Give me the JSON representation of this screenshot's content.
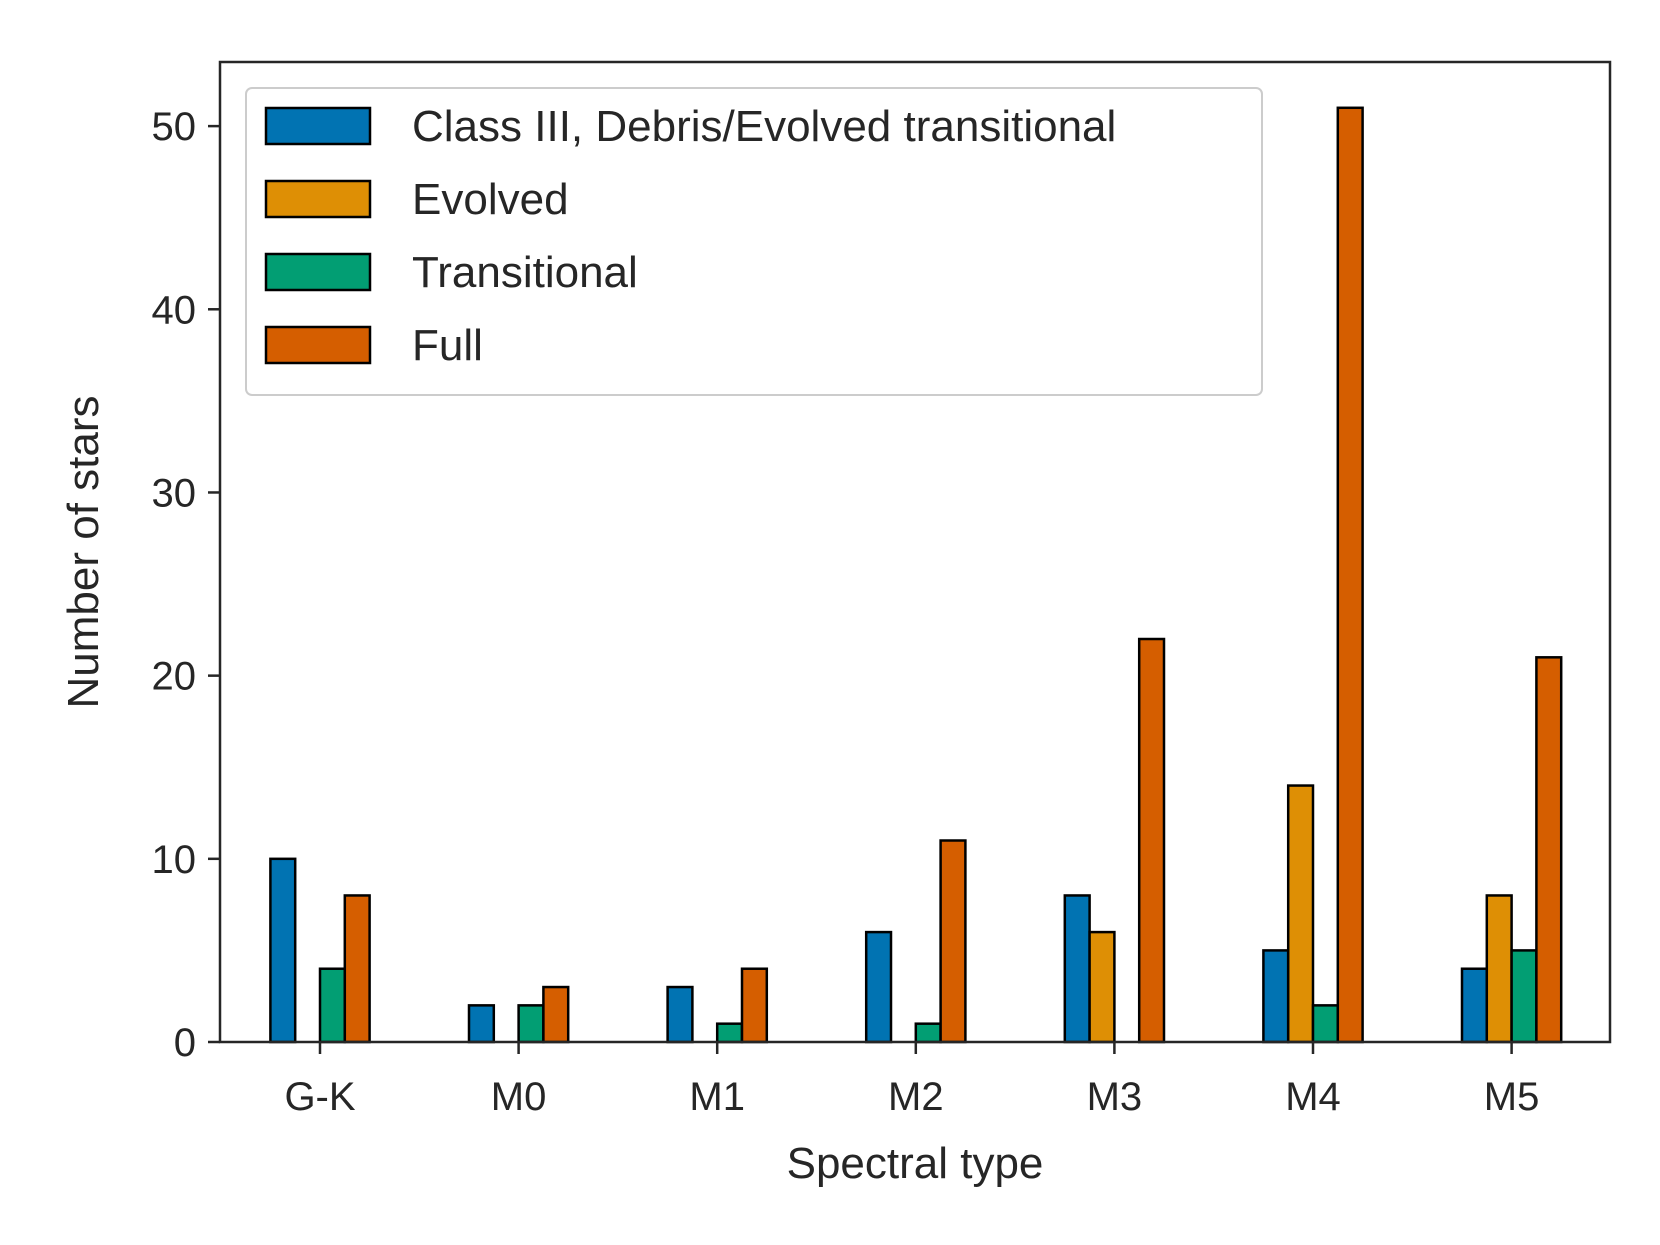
{
  "chart_data": {
    "type": "bar",
    "title": "",
    "xlabel": "Spectral type",
    "ylabel": "Number of stars",
    "categories": [
      "G-K",
      "M0",
      "M1",
      "M2",
      "M3",
      "M4",
      "M5"
    ],
    "ylim": [
      0,
      53.5
    ],
    "yticks": [
      0,
      10,
      20,
      30,
      40,
      50
    ],
    "grid": false,
    "legend_position": "top-left",
    "series": [
      {
        "name": "Class III, Debris/Evolved transitional",
        "color": "#0173b2",
        "values": [
          10,
          2,
          3,
          6,
          8,
          5,
          4
        ]
      },
      {
        "name": "Evolved",
        "color": "#de8f05",
        "values": [
          0,
          0,
          0,
          0,
          6,
          14,
          8
        ]
      },
      {
        "name": "Transitional",
        "color": "#029e73",
        "values": [
          4,
          2,
          1,
          1,
          0,
          2,
          5
        ]
      },
      {
        "name": "Full",
        "color": "#d55e00",
        "values": [
          8,
          3,
          4,
          11,
          22,
          51,
          21
        ]
      }
    ]
  }
}
